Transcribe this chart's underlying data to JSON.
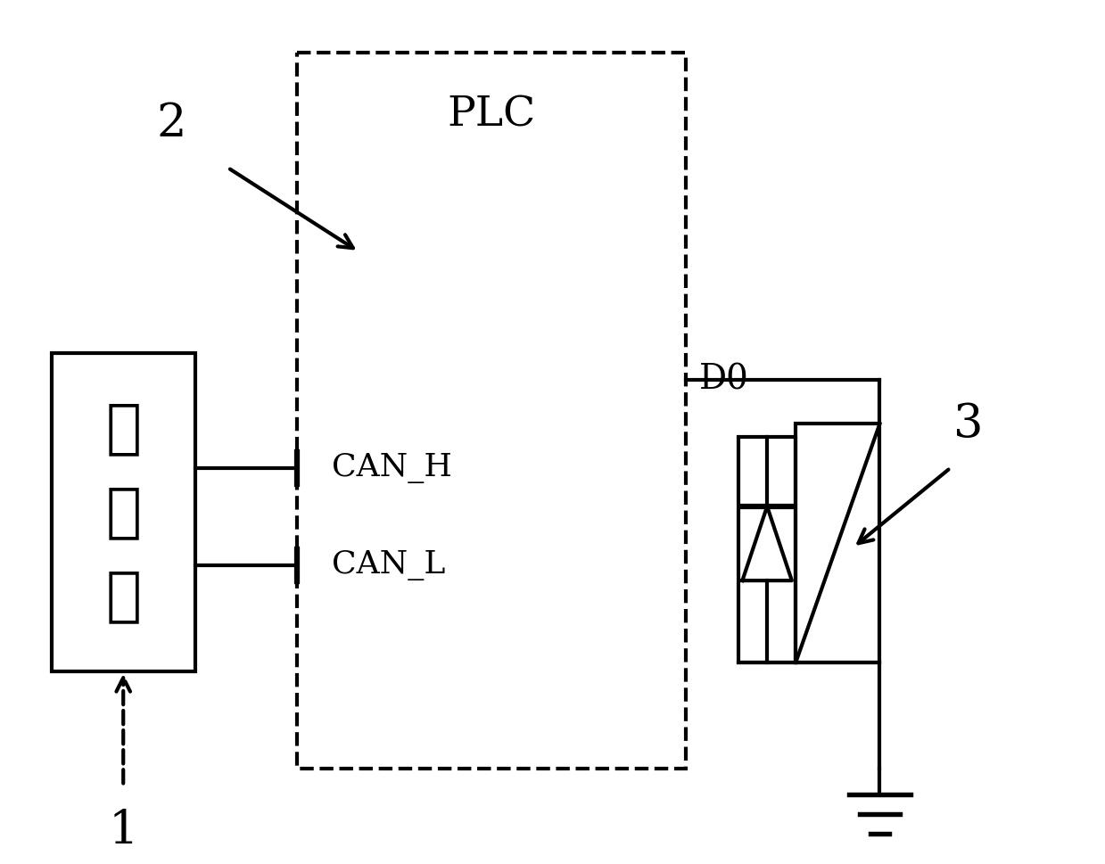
{
  "bg_color": "#ffffff",
  "line_color": "#000000",
  "lw": 3.0,
  "figsize": [
    12.39,
    9.69
  ],
  "dpi": 100,
  "encoder_label": "编码器",
  "plc_label": "PLC",
  "can_h_label": "CAN_H",
  "can_l_label": "CAN_L",
  "do_label": "D0",
  "label_1": "1",
  "label_2": "2",
  "label_3": "3"
}
